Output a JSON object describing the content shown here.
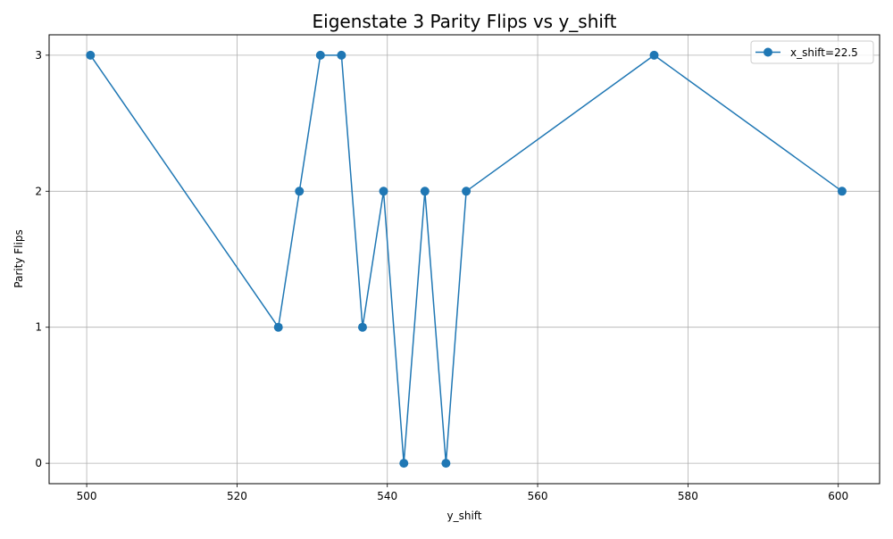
{
  "chart_data": {
    "type": "line",
    "title": "Eigenstate 3 Parity Flips vs y_shift",
    "xlabel": "y_shift",
    "ylabel": "Parity Flips",
    "xlim": [
      495,
      605.5
    ],
    "ylim": [
      -0.15,
      3.15
    ],
    "xticks": [
      500,
      520,
      540,
      560,
      580,
      600
    ],
    "yticks": [
      0,
      1,
      2,
      3
    ],
    "grid": true,
    "legend_position": "top-right",
    "series": [
      {
        "name": "x_shift=22.5",
        "color": "#1f77b4",
        "marker": "circle",
        "x": [
          500.5,
          525.5,
          528.3,
          531.1,
          533.9,
          536.7,
          539.5,
          542.2,
          545.0,
          547.8,
          550.5,
          575.5,
          600.5
        ],
        "y": [
          3,
          1,
          2,
          3,
          3,
          1,
          2,
          0,
          2,
          0,
          2,
          3,
          2
        ]
      }
    ]
  }
}
